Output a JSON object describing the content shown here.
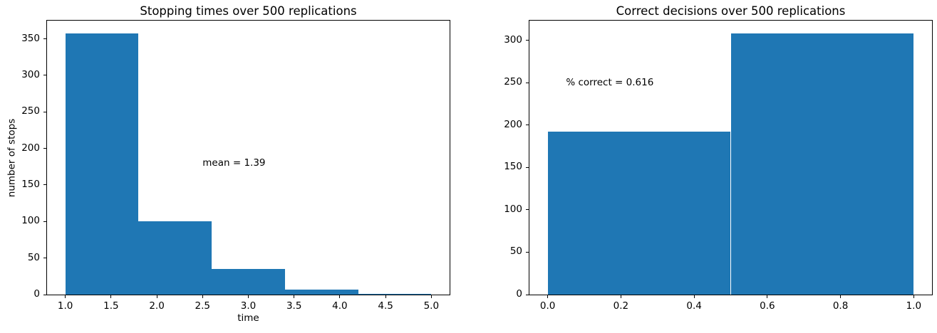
{
  "figure": {
    "background": "#ffffff",
    "bar_color": "#1f77b4",
    "axis_color": "#000000",
    "text_color": "#000000"
  },
  "chart_data": [
    {
      "type": "bar",
      "kind": "histogram",
      "title": "Stopping times over 500 replications",
      "xlabel": "time",
      "ylabel": "number of stops",
      "bin_edges": [
        1.0,
        1.8,
        2.6,
        3.4,
        4.2,
        5.0
      ],
      "counts": [
        357,
        100,
        35,
        7,
        1
      ],
      "xlim": [
        0.8,
        5.2
      ],
      "ylim": [
        0,
        374.85
      ],
      "xticks": [
        1.0,
        1.5,
        2.0,
        2.5,
        3.0,
        3.5,
        4.0,
        4.5,
        5.0
      ],
      "xtick_labels": [
        "1.0",
        "1.5",
        "2.0",
        "2.5",
        "3.0",
        "3.5",
        "4.0",
        "4.5",
        "5.0"
      ],
      "yticks": [
        0,
        50,
        100,
        150,
        200,
        250,
        300,
        350
      ],
      "ytick_labels": [
        "0",
        "50",
        "100",
        "150",
        "200",
        "250",
        "300",
        "350"
      ],
      "annotation": {
        "text": "mean = 1.39",
        "x": 2.5,
        "y": 180
      },
      "grid": false,
      "legend_position": "none"
    },
    {
      "type": "bar",
      "kind": "histogram",
      "title": "Correct decisions over 500 replications",
      "xlabel": "",
      "ylabel": "",
      "bin_edges": [
        0.0,
        0.5,
        1.0
      ],
      "counts": [
        192,
        308
      ],
      "xlim": [
        -0.05,
        1.05
      ],
      "ylim": [
        0,
        323.4
      ],
      "xticks": [
        0.0,
        0.2,
        0.4,
        0.6,
        0.8,
        1.0
      ],
      "xtick_labels": [
        "0.0",
        "0.2",
        "0.4",
        "0.6",
        "0.8",
        "1.0"
      ],
      "yticks": [
        0,
        50,
        100,
        150,
        200,
        250,
        300
      ],
      "ytick_labels": [
        "0",
        "50",
        "100",
        "150",
        "200",
        "250",
        "300"
      ],
      "annotation": {
        "text": "% correct = 0.616",
        "x": 0.05,
        "y": 250
      },
      "grid": false,
      "legend_position": "none"
    }
  ]
}
